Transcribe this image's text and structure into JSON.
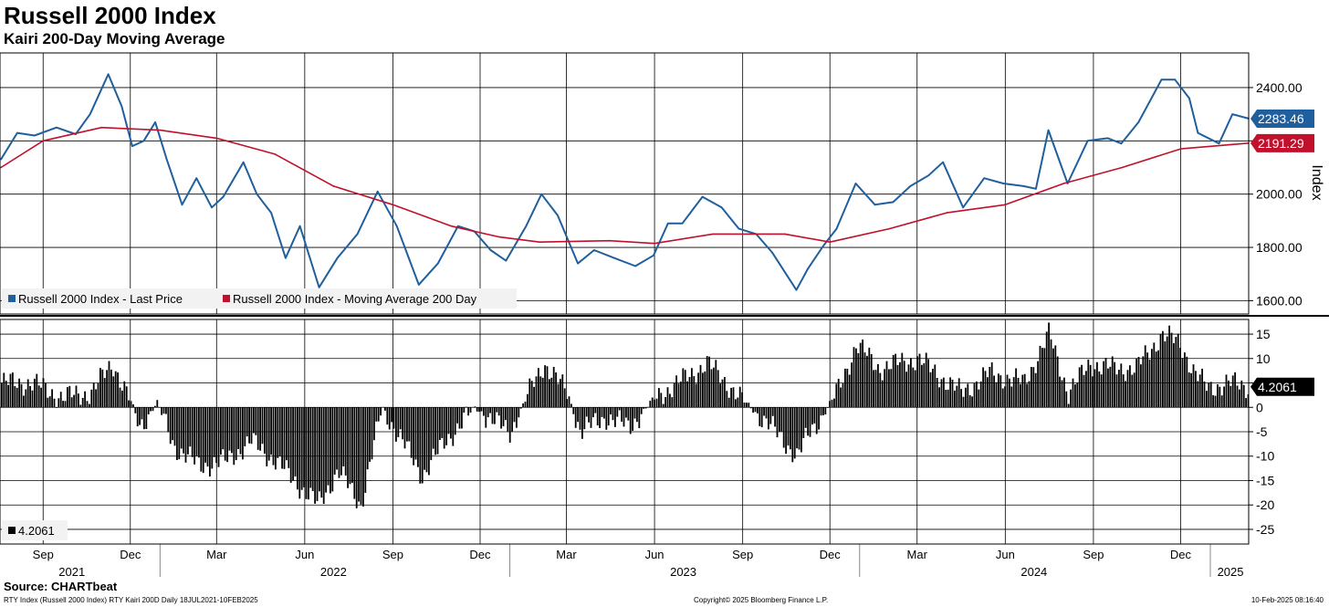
{
  "title": "Russell 2000 Index",
  "subtitle": "Kairi 200-Day Moving Average",
  "source": "Source: CHARTbeat",
  "footer_left": "RTY Index (Russell 2000 Index) RTY Kairi 200D  Daily 18JUL2021-10FEB2025",
  "footer_mid": "Copyright© 2025 Bloomberg Finance L.P.",
  "footer_right": "10-Feb-2025 08:16:40",
  "colors": {
    "price": "#1f5f9e",
    "ma": "#c0102b",
    "kairi": "#000000"
  },
  "chart_data": [
    {
      "type": "line",
      "x_range": [
        "2021-07-18",
        "2025-02-10"
      ],
      "ylabel": "Index",
      "ylim": [
        1550,
        2530
      ],
      "yticks": [
        "1600.00",
        "1800.00",
        "2000.00",
        "2200.00",
        "2400.00"
      ],
      "grid": true,
      "legend_position": "bottom-left",
      "legend": [
        "Russell 2000 Index - Last Price",
        "Russell 2000 Index - Moving Average 200 Day"
      ],
      "last_value_labels": {
        "price": "2283.46",
        "ma": "2191.29"
      },
      "series": [
        {
          "name": "Russell 2000 Index - Last Price",
          "color": "#1f5f9e",
          "points": [
            [
              "2021-07-19",
              2130
            ],
            [
              "2021-08-05",
              2230
            ],
            [
              "2021-08-23",
              2220
            ],
            [
              "2021-09-15",
              2250
            ],
            [
              "2021-10-05",
              2225
            ],
            [
              "2021-10-20",
              2300
            ],
            [
              "2021-11-08",
              2450
            ],
            [
              "2021-11-22",
              2330
            ],
            [
              "2021-12-03",
              2180
            ],
            [
              "2021-12-15",
              2200
            ],
            [
              "2021-12-27",
              2270
            ],
            [
              "2022-01-08",
              2130
            ],
            [
              "2022-01-24",
              1960
            ],
            [
              "2022-02-08",
              2060
            ],
            [
              "2022-02-24",
              1950
            ],
            [
              "2022-03-08",
              1990
            ],
            [
              "2022-03-29",
              2120
            ],
            [
              "2022-04-12",
              2000
            ],
            [
              "2022-04-27",
              1930
            ],
            [
              "2022-05-12",
              1760
            ],
            [
              "2022-05-27",
              1880
            ],
            [
              "2022-06-16",
              1650
            ],
            [
              "2022-07-05",
              1760
            ],
            [
              "2022-07-26",
              1850
            ],
            [
              "2022-08-16",
              2010
            ],
            [
              "2022-09-05",
              1880
            ],
            [
              "2022-09-28",
              1660
            ],
            [
              "2022-10-18",
              1740
            ],
            [
              "2022-11-08",
              1880
            ],
            [
              "2022-11-25",
              1860
            ],
            [
              "2022-12-12",
              1790
            ],
            [
              "2022-12-28",
              1750
            ],
            [
              "2023-01-18",
              1880
            ],
            [
              "2023-02-03",
              2000
            ],
            [
              "2023-02-20",
              1920
            ],
            [
              "2023-03-13",
              1740
            ],
            [
              "2023-03-30",
              1790
            ],
            [
              "2023-04-20",
              1760
            ],
            [
              "2023-05-12",
              1730
            ],
            [
              "2023-05-31",
              1770
            ],
            [
              "2023-06-15",
              1890
            ],
            [
              "2023-06-30",
              1890
            ],
            [
              "2023-07-21",
              1990
            ],
            [
              "2023-08-10",
              1950
            ],
            [
              "2023-08-28",
              1870
            ],
            [
              "2023-09-15",
              1850
            ],
            [
              "2023-10-02",
              1780
            ],
            [
              "2023-10-27",
              1640
            ],
            [
              "2023-11-08",
              1720
            ],
            [
              "2023-11-25",
              1810
            ],
            [
              "2023-12-08",
              1870
            ],
            [
              "2023-12-28",
              2040
            ],
            [
              "2024-01-17",
              1960
            ],
            [
              "2024-02-05",
              1970
            ],
            [
              "2024-02-23",
              2030
            ],
            [
              "2024-03-13",
              2070
            ],
            [
              "2024-03-28",
              2120
            ],
            [
              "2024-04-18",
              1950
            ],
            [
              "2024-05-10",
              2060
            ],
            [
              "2024-05-30",
              2040
            ],
            [
              "2024-06-20",
              2030
            ],
            [
              "2024-07-03",
              2020
            ],
            [
              "2024-07-16",
              2240
            ],
            [
              "2024-08-05",
              2040
            ],
            [
              "2024-08-26",
              2200
            ],
            [
              "2024-09-16",
              2210
            ],
            [
              "2024-09-30",
              2190
            ],
            [
              "2024-10-18",
              2270
            ],
            [
              "2024-11-11",
              2430
            ],
            [
              "2024-11-25",
              2430
            ],
            [
              "2024-12-10",
              2360
            ],
            [
              "2024-12-19",
              2230
            ],
            [
              "2025-01-10",
              2190
            ],
            [
              "2025-01-24",
              2300
            ],
            [
              "2025-02-10",
              2283.46
            ]
          ]
        },
        {
          "name": "Russell 2000 Index - Moving Average 200 Day",
          "color": "#c0102b",
          "points": [
            [
              "2021-07-19",
              2100
            ],
            [
              "2021-09-01",
              2200
            ],
            [
              "2021-11-01",
              2250
            ],
            [
              "2022-01-01",
              2240
            ],
            [
              "2022-03-01",
              2210
            ],
            [
              "2022-05-01",
              2150
            ],
            [
              "2022-07-01",
              2030
            ],
            [
              "2022-09-01",
              1960
            ],
            [
              "2022-11-01",
              1880
            ],
            [
              "2022-12-20",
              1840
            ],
            [
              "2023-02-01",
              1820
            ],
            [
              "2023-04-15",
              1825
            ],
            [
              "2023-06-01",
              1815
            ],
            [
              "2023-08-01",
              1850
            ],
            [
              "2023-10-15",
              1850
            ],
            [
              "2023-12-01",
              1820
            ],
            [
              "2024-02-01",
              1870
            ],
            [
              "2024-04-01",
              1930
            ],
            [
              "2024-06-01",
              1960
            ],
            [
              "2024-08-01",
              2040
            ],
            [
              "2024-10-01",
              2100
            ],
            [
              "2024-12-01",
              2170
            ],
            [
              "2025-02-10",
              2191.29
            ]
          ]
        }
      ]
    },
    {
      "type": "bar",
      "x_range": [
        "2021-07-18",
        "2025-02-10"
      ],
      "ylim": [
        -28,
        18
      ],
      "yticks": [
        "15",
        "10",
        "5",
        "0",
        "-5",
        "-10",
        "-15",
        "-20",
        "-25"
      ],
      "grid": true,
      "legend_position": "bottom-left",
      "legend": [
        "4.2061"
      ],
      "last_value_label": "4.2061",
      "series": [
        {
          "name": "4.2061",
          "color": "#000000",
          "points": [
            [
              "2021-07-19",
              5
            ],
            [
              "2021-08-20",
              5
            ],
            [
              "2021-09-20",
              2
            ],
            [
              "2021-10-20",
              3
            ],
            [
              "2021-11-12",
              9
            ],
            [
              "2021-12-01",
              1
            ],
            [
              "2021-12-10",
              -4
            ],
            [
              "2021-12-28",
              1
            ],
            [
              "2022-01-15",
              -8
            ],
            [
              "2022-02-10",
              -12
            ],
            [
              "2022-03-10",
              -11
            ],
            [
              "2022-04-05",
              -7
            ],
            [
              "2022-05-01",
              -11
            ],
            [
              "2022-06-14",
              -20
            ],
            [
              "2022-07-05",
              -13
            ],
            [
              "2022-07-29",
              -20
            ],
            [
              "2022-08-20",
              0
            ],
            [
              "2022-09-10",
              -7
            ],
            [
              "2022-10-01",
              -14
            ],
            [
              "2022-10-25",
              -7
            ],
            [
              "2022-11-25",
              0
            ],
            [
              "2022-12-15",
              -3
            ],
            [
              "2023-01-01",
              -5
            ],
            [
              "2023-01-25",
              5
            ],
            [
              "2023-02-05",
              9
            ],
            [
              "2023-03-01",
              3
            ],
            [
              "2023-03-15",
              -5
            ],
            [
              "2023-04-10",
              -2
            ],
            [
              "2023-05-05",
              -4
            ],
            [
              "2023-06-01",
              2
            ],
            [
              "2023-06-25",
              5
            ],
            [
              "2023-07-25",
              9
            ],
            [
              "2023-08-10",
              6
            ],
            [
              "2023-08-28",
              2
            ],
            [
              "2023-09-25",
              -3
            ],
            [
              "2023-10-27",
              -10
            ],
            [
              "2023-11-10",
              -5
            ],
            [
              "2023-11-25",
              -1
            ],
            [
              "2023-12-10",
              4
            ],
            [
              "2023-12-28",
              13
            ],
            [
              "2024-01-20",
              8
            ],
            [
              "2024-03-01",
              10
            ],
            [
              "2024-04-15",
              3
            ],
            [
              "2024-05-15",
              7
            ],
            [
              "2024-06-20",
              5
            ],
            [
              "2024-07-16",
              15
            ],
            [
              "2024-08-05",
              3
            ],
            [
              "2024-08-28",
              9
            ],
            [
              "2024-09-20",
              8
            ],
            [
              "2024-10-15",
              8
            ],
            [
              "2024-11-11",
              15
            ],
            [
              "2024-11-30",
              13
            ],
            [
              "2024-12-15",
              7
            ],
            [
              "2024-12-28",
              4
            ],
            [
              "2025-01-20",
              5
            ],
            [
              "2025-02-10",
              4.2061
            ]
          ]
        }
      ]
    }
  ],
  "x_axis": {
    "months": [
      [
        "2021-09-01",
        "Sep"
      ],
      [
        "2021-12-01",
        "Dec"
      ],
      [
        "2022-03-01",
        "Mar"
      ],
      [
        "2022-06-01",
        "Jun"
      ],
      [
        "2022-09-01",
        "Sep"
      ],
      [
        "2022-12-01",
        "Dec"
      ],
      [
        "2023-03-01",
        "Mar"
      ],
      [
        "2023-06-01",
        "Jun"
      ],
      [
        "2023-09-01",
        "Sep"
      ],
      [
        "2023-12-01",
        "Dec"
      ],
      [
        "2024-03-01",
        "Mar"
      ],
      [
        "2024-06-01",
        "Jun"
      ],
      [
        "2024-09-01",
        "Sep"
      ],
      [
        "2024-12-01",
        "Dec"
      ]
    ],
    "years": [
      [
        "2021-10-01",
        "2021"
      ],
      [
        "2022-07-01",
        "2022"
      ],
      [
        "2023-07-01",
        "2023"
      ],
      [
        "2024-07-01",
        "2024"
      ],
      [
        "2025-01-22",
        "2025"
      ]
    ],
    "year_boundaries": [
      "2022-01-01",
      "2023-01-01",
      "2024-01-01",
      "2025-01-01"
    ]
  }
}
